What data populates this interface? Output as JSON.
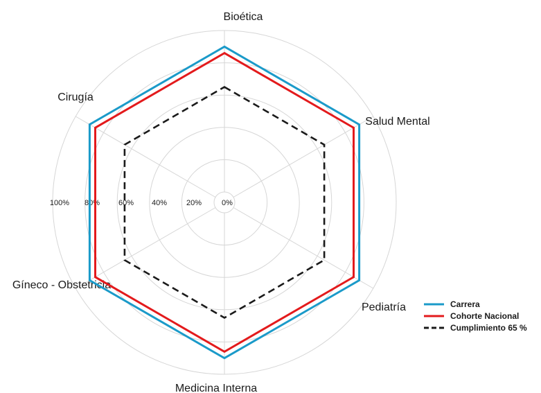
{
  "chart_data": {
    "type": "radar",
    "categories": [
      "Bioética",
      "Salud Mental",
      "Pediatría",
      "Medicina Interna",
      "Gíneco - Obstetricia",
      "Cirugía"
    ],
    "radial_ticks": [
      "0%",
      "20%",
      "40%",
      "60%",
      "80%",
      "100%"
    ],
    "rlim": [
      0,
      100
    ],
    "grid": true,
    "legend_position": "bottom-right",
    "series": [
      {
        "name": "Carrera",
        "values": [
          90,
          90,
          90,
          90,
          90,
          90
        ],
        "color": "#1a9ac9",
        "dash": "solid"
      },
      {
        "name": "Cohorte Nacional",
        "values": [
          86,
          86,
          86,
          86,
          86,
          86
        ],
        "color": "#e31a1c",
        "dash": "solid"
      },
      {
        "name": "Cumplimiento 65 %",
        "values": [
          65,
          65,
          65,
          65,
          65,
          65
        ],
        "color": "#1a1a1a",
        "dash": "dashed"
      }
    ]
  }
}
